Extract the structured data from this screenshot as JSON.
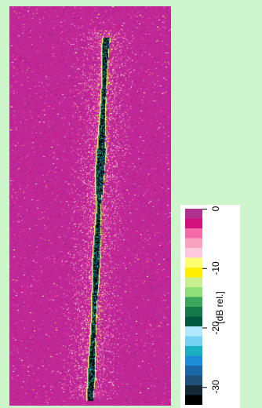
{
  "colorbar": {
    "units": "[dB rel.]",
    "ticks": [
      {
        "label": "0",
        "value": 0
      },
      {
        "label": "-10",
        "value": -10
      },
      {
        "label": "-20",
        "value": -20
      },
      {
        "label": "-30",
        "value": -30
      }
    ],
    "range": [
      0,
      -33
    ],
    "colors": [
      "#b0308e",
      "#d4107c",
      "#f46aa6",
      "#f8a2c0",
      "#ffc8dc",
      "#ffff70",
      "#ffee00",
      "#c8f090",
      "#90de7a",
      "#3aa75b",
      "#157a47",
      "#005a40",
      "#b0e8ff",
      "#74d2f0",
      "#1ab0c0",
      "#1c8cd8",
      "#1868a8",
      "#1e5078",
      "#142838",
      "#000000"
    ]
  },
  "image_colors": {
    "background_tile": "#c02898",
    "speckle": [
      "#d4107c",
      "#f46aa6",
      "#ffc8dc",
      "#ffff70",
      "#a0208a"
    ],
    "line_core": [
      "#000000",
      "#142838",
      "#1e5078",
      "#1ab0c0",
      "#3aa75b",
      "#ffff70"
    ]
  }
}
